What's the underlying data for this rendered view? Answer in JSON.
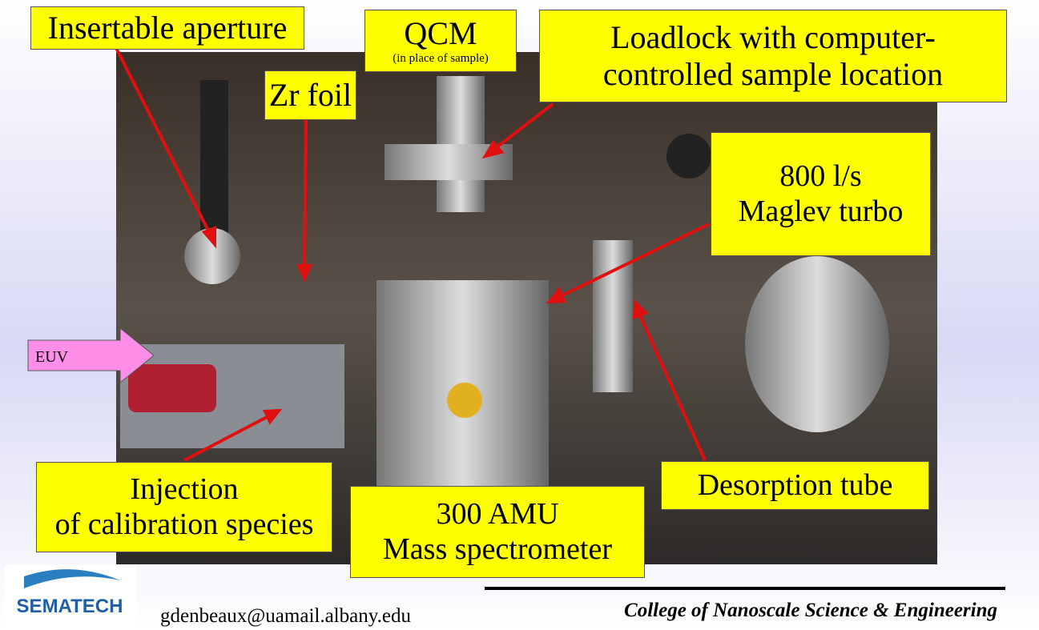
{
  "callouts": [
    {
      "lines": [
        "Insertable aperture"
      ]
    },
    {
      "lines": [
        "QCM",
        "(in place of sample)"
      ]
    },
    {
      "lines": [
        "Loadlock with computer-",
        "controlled sample location"
      ]
    },
    {
      "lines": [
        "Zr foil"
      ]
    },
    {
      "lines": [
        "800 l/s",
        "Maglev turbo"
      ]
    },
    {
      "lines": [
        "Injection",
        "of calibration species"
      ]
    },
    {
      "lines": [
        "300 AMU",
        "Mass spectrometer"
      ]
    },
    {
      "lines": [
        "Desorption tube"
      ]
    }
  ],
  "euv_label": "EUV",
  "logo": "SEMATECH",
  "email": "gdenbeaux@uamail.albany.edu",
  "footer": "College of Nanoscale Science & Engineering"
}
